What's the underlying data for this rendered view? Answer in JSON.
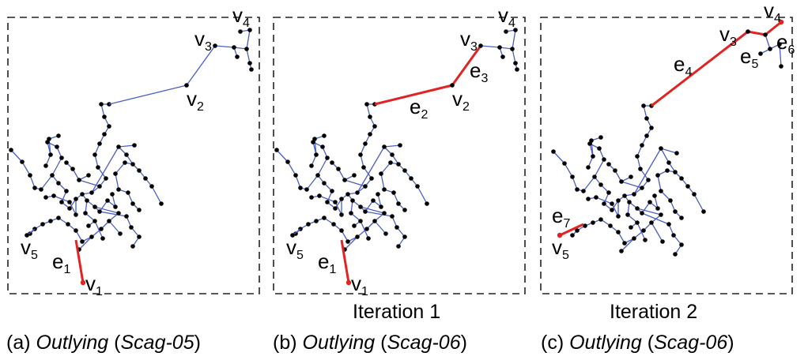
{
  "panels": [
    {
      "id": "a",
      "iteration": "",
      "caption": {
        "prefix": "(a) ",
        "measure": "Outlying",
        "open": " (",
        "source": "Scag-05",
        "close": ")"
      },
      "labels": [
        {
          "base": "v",
          "sub": "1"
        },
        {
          "base": "v",
          "sub": "2"
        },
        {
          "base": "v",
          "sub": "3"
        },
        {
          "base": "v",
          "sub": "4"
        },
        {
          "base": "v",
          "sub": "5"
        },
        {
          "base": "e",
          "sub": "1"
        }
      ]
    },
    {
      "id": "b",
      "iteration": "Iteration 1",
      "caption": {
        "prefix": "(b) ",
        "measure": "Outlying",
        "open": " (",
        "source": "Scag-06",
        "close": ")"
      },
      "labels": [
        {
          "base": "v",
          "sub": "1"
        },
        {
          "base": "v",
          "sub": "2"
        },
        {
          "base": "v",
          "sub": "3"
        },
        {
          "base": "v",
          "sub": "4"
        },
        {
          "base": "v",
          "sub": "5"
        },
        {
          "base": "e",
          "sub": "1"
        },
        {
          "base": "e",
          "sub": "2"
        },
        {
          "base": "e",
          "sub": "3"
        }
      ]
    },
    {
      "id": "c",
      "iteration": "Iteration 2",
      "caption": {
        "prefix": "(c) ",
        "measure": "Outlying",
        "open": " (",
        "source": "Scag-06",
        "close": ")"
      },
      "labels": [
        {
          "base": "v",
          "sub": "3"
        },
        {
          "base": "v",
          "sub": "4"
        },
        {
          "base": "v",
          "sub": "5"
        },
        {
          "base": "e",
          "sub": "4"
        },
        {
          "base": "e",
          "sub": "5"
        },
        {
          "base": "e",
          "sub": "6"
        },
        {
          "base": "e",
          "sub": "7"
        }
      ]
    }
  ],
  "colors": {
    "tree_edge": "#4a5fc1",
    "highlight_edge": "#e02424",
    "node": "#000000",
    "frame": "#222222"
  }
}
